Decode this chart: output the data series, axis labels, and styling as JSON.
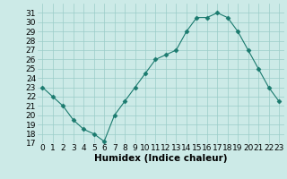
{
  "x": [
    0,
    1,
    2,
    3,
    4,
    5,
    6,
    7,
    8,
    9,
    10,
    11,
    12,
    13,
    14,
    15,
    16,
    17,
    18,
    19,
    20,
    21,
    22,
    23
  ],
  "y": [
    23,
    22,
    21,
    19.5,
    18.5,
    18,
    17.2,
    20,
    21.5,
    23,
    24.5,
    26,
    26.5,
    27,
    29,
    30.5,
    30.5,
    31,
    30.5,
    29,
    27,
    25,
    23,
    21.5
  ],
  "line_color": "#1a7a6e",
  "marker": "D",
  "marker_size": 2.5,
  "bg_color": "#cceae7",
  "grid_color": "#9bccc8",
  "xlabel": "Humidex (Indice chaleur)",
  "xlim": [
    -0.5,
    23.5
  ],
  "ylim": [
    17,
    32
  ],
  "yticks": [
    17,
    18,
    19,
    20,
    21,
    22,
    23,
    24,
    25,
    26,
    27,
    28,
    29,
    30,
    31
  ],
  "xticks": [
    0,
    1,
    2,
    3,
    4,
    5,
    6,
    7,
    8,
    9,
    10,
    11,
    12,
    13,
    14,
    15,
    16,
    17,
    18,
    19,
    20,
    21,
    22,
    23
  ],
  "tick_fontsize": 6.5,
  "label_fontsize": 7.5
}
